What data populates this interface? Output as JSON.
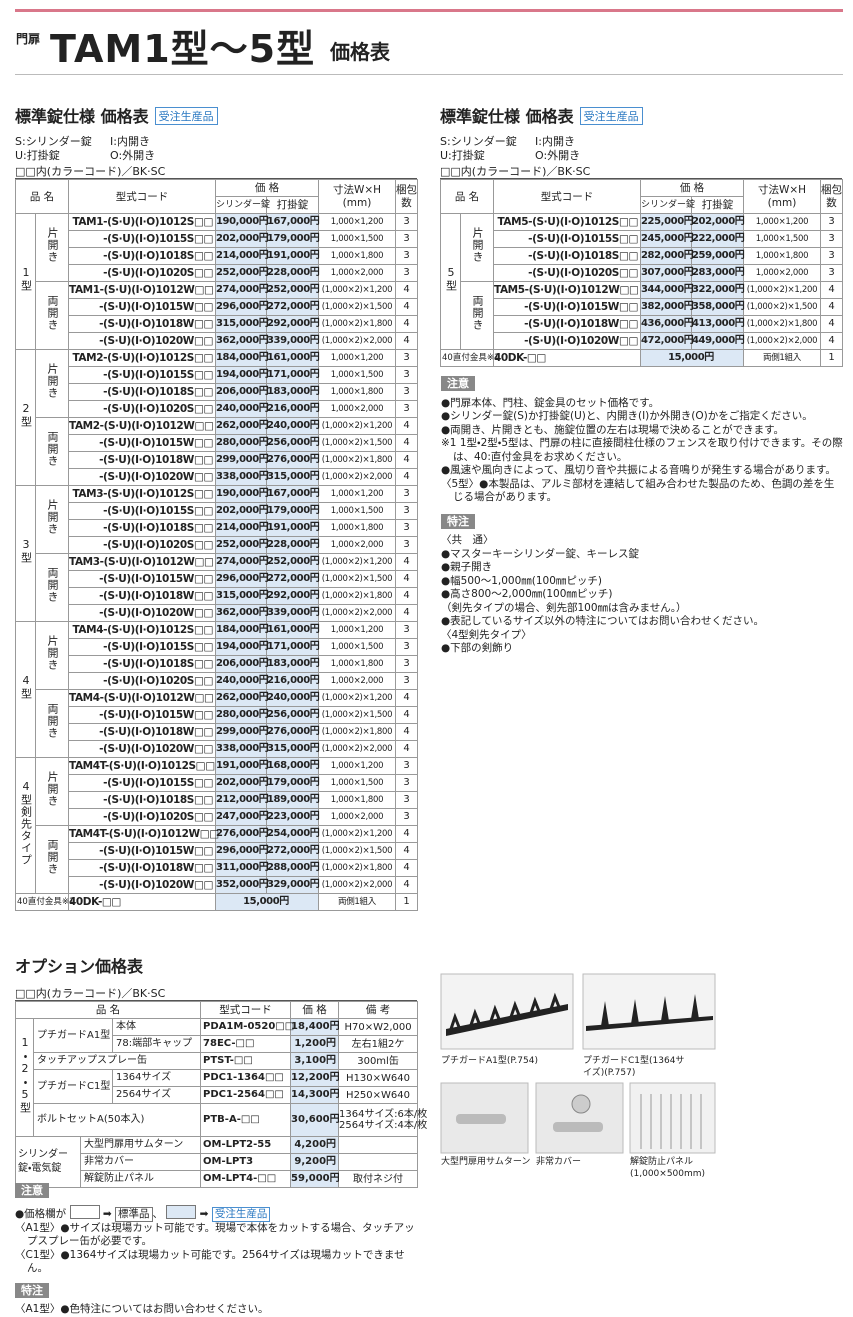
{
  "header": {
    "label": "門扉",
    "title": "TAM1型〜5型",
    "suffix": "価格表"
  },
  "left_table": {
    "title": "標準錠仕様 価格表",
    "badge": "受注生産品",
    "legend": [
      "S:シリンダー錠",
      "I:内開き",
      "U:打掛錠",
      "O:外開き"
    ],
    "color_code": "□□内(カラーコード)／BK·SC",
    "headers": [
      "品 名",
      "型式コード",
      "価 格",
      "シリンダー錠",
      "打掛錠",
      "寸法W×H",
      "(mm)",
      "梱包数"
    ],
    "groups": [
      {
        "name": "1型",
        "subgroups": [
          {
            "name": "片開き",
            "rows": [
              [
                "TAM1-(S·U)(I·O)1012S□□",
                "190,000円",
                "167,000円",
                "1,000×1,200",
                3
              ],
              [
                "-(S·U)(I·O)1015S□□",
                "202,000円",
                "179,000円",
                "1,000×1,500",
                3
              ],
              [
                "-(S·U)(I·O)1018S□□",
                "214,000円",
                "191,000円",
                "1,000×1,800",
                3
              ],
              [
                "-(S·U)(I·O)1020S□□",
                "252,000円",
                "228,000円",
                "1,000×2,000",
                3
              ]
            ]
          },
          {
            "name": "両開き",
            "rows": [
              [
                "TAM1-(S·U)(I·O)1012W□□",
                "274,000円",
                "252,000円",
                "(1,000×2)×1,200",
                4
              ],
              [
                "-(S·U)(I·O)1015W□□",
                "296,000円",
                "272,000円",
                "(1,000×2)×1,500",
                4
              ],
              [
                "-(S·U)(I·O)1018W□□",
                "315,000円",
                "292,000円",
                "(1,000×2)×1,800",
                4
              ],
              [
                "-(S·U)(I·O)1020W□□",
                "362,000円",
                "339,000円",
                "(1,000×2)×2,000",
                4
              ]
            ]
          }
        ]
      },
      {
        "name": "2型",
        "subgroups": [
          {
            "name": "片開き",
            "rows": [
              [
                "TAM2-(S·U)(I·O)1012S□□",
                "184,000円",
                "161,000円",
                "1,000×1,200",
                3
              ],
              [
                "-(S·U)(I·O)1015S□□",
                "194,000円",
                "171,000円",
                "1,000×1,500",
                3
              ],
              [
                "-(S·U)(I·O)1018S□□",
                "206,000円",
                "183,000円",
                "1,000×1,800",
                3
              ],
              [
                "-(S·U)(I·O)1020S□□",
                "240,000円",
                "216,000円",
                "1,000×2,000",
                3
              ]
            ]
          },
          {
            "name": "両開き",
            "rows": [
              [
                "TAM2-(S·U)(I·O)1012W□□",
                "262,000円",
                "240,000円",
                "(1,000×2)×1,200",
                4
              ],
              [
                "-(S·U)(I·O)1015W□□",
                "280,000円",
                "256,000円",
                "(1,000×2)×1,500",
                4
              ],
              [
                "-(S·U)(I·O)1018W□□",
                "299,000円",
                "276,000円",
                "(1,000×2)×1,800",
                4
              ],
              [
                "-(S·U)(I·O)1020W□□",
                "338,000円",
                "315,000円",
                "(1,000×2)×2,000",
                4
              ]
            ]
          }
        ]
      },
      {
        "name": "3型",
        "subgroups": [
          {
            "name": "片開き",
            "rows": [
              [
                "TAM3-(S·U)(I·O)1012S□□",
                "190,000円",
                "167,000円",
                "1,000×1,200",
                3
              ],
              [
                "-(S·U)(I·O)1015S□□",
                "202,000円",
                "179,000円",
                "1,000×1,500",
                3
              ],
              [
                "-(S·U)(I·O)1018S□□",
                "214,000円",
                "191,000円",
                "1,000×1,800",
                3
              ],
              [
                "-(S·U)(I·O)1020S□□",
                "252,000円",
                "228,000円",
                "1,000×2,000",
                3
              ]
            ]
          },
          {
            "name": "両開き",
            "rows": [
              [
                "TAM3-(S·U)(I·O)1012W□□",
                "274,000円",
                "252,000円",
                "(1,000×2)×1,200",
                4
              ],
              [
                "-(S·U)(I·O)1015W□□",
                "296,000円",
                "272,000円",
                "(1,000×2)×1,500",
                4
              ],
              [
                "-(S·U)(I·O)1018W□□",
                "315,000円",
                "292,000円",
                "(1,000×2)×1,800",
                4
              ],
              [
                "-(S·U)(I·O)1020W□□",
                "362,000円",
                "339,000円",
                "(1,000×2)×2,000",
                4
              ]
            ]
          }
        ]
      },
      {
        "name": "4型",
        "subgroups": [
          {
            "name": "片開き",
            "rows": [
              [
                "TAM4-(S·U)(I·O)1012S□□",
                "184,000円",
                "161,000円",
                "1,000×1,200",
                3
              ],
              [
                "-(S·U)(I·O)1015S□□",
                "194,000円",
                "171,000円",
                "1,000×1,500",
                3
              ],
              [
                "-(S·U)(I·O)1018S□□",
                "206,000円",
                "183,000円",
                "1,000×1,800",
                3
              ],
              [
                "-(S·U)(I·O)1020S□□",
                "240,000円",
                "216,000円",
                "1,000×2,000",
                3
              ]
            ]
          },
          {
            "name": "両開き",
            "rows": [
              [
                "TAM4-(S·U)(I·O)1012W□□",
                "262,000円",
                "240,000円",
                "(1,000×2)×1,200",
                4
              ],
              [
                "-(S·U)(I·O)1015W□□",
                "280,000円",
                "256,000円",
                "(1,000×2)×1,500",
                4
              ],
              [
                "-(S·U)(I·O)1018W□□",
                "299,000円",
                "276,000円",
                "(1,000×2)×1,800",
                4
              ],
              [
                "-(S·U)(I·O)1020W□□",
                "338,000円",
                "315,000円",
                "(1,000×2)×2,000",
                4
              ]
            ]
          }
        ]
      },
      {
        "name": "4型剣先タイプ",
        "subgroups": [
          {
            "name": "片開き",
            "rows": [
              [
                "TAM4T-(S·U)(I·O)1012S□□",
                "191,000円",
                "168,000円",
                "1,000×1,200",
                3
              ],
              [
                "-(S·U)(I·O)1015S□□",
                "202,000円",
                "179,000円",
                "1,000×1,500",
                3
              ],
              [
                "-(S·U)(I·O)1018S□□",
                "212,000円",
                "189,000円",
                "1,000×1,800",
                3
              ],
              [
                "-(S·U)(I·O)1020S□□",
                "247,000円",
                "223,000円",
                "1,000×2,000",
                3
              ]
            ]
          },
          {
            "name": "両開き",
            "rows": [
              [
                "TAM4T-(S·U)(I·O)1012W□□",
                "276,000円",
                "254,000円",
                "(1,000×2)×1,200",
                4
              ],
              [
                "-(S·U)(I·O)1015W□□",
                "296,000円",
                "272,000円",
                "(1,000×2)×1,500",
                4
              ],
              [
                "-(S·U)(I·O)1018W□□",
                "311,000円",
                "288,000円",
                "(1,000×2)×1,800",
                4
              ],
              [
                "-(S·U)(I·O)1020W□□",
                "352,000円",
                "329,000円",
                "(1,000×2)×2,000",
                4
              ]
            ]
          }
        ]
      }
    ],
    "footer": [
      "40直付金具※1",
      "40DK-□□",
      "15,000円",
      "両側1組入",
      1
    ]
  },
  "right_table": {
    "title": "標準錠仕様 価格表",
    "badge": "受注生産品",
    "legend": [
      "S:シリンダー錠",
      "I:内開き",
      "U:打掛錠",
      "O:外開き"
    ],
    "color_code": "□□内(カラーコード)／BK·SC",
    "headers": [
      "品 名",
      "型式コード",
      "価 格",
      "シリンダー錠",
      "打掛錠",
      "寸法W×H",
      "(mm)",
      "梱包数"
    ],
    "groups": [
      {
        "name": "5型",
        "subgroups": [
          {
            "name": "片開き",
            "rows": [
              [
                "TAM5-(S·U)(I·O)1012S□□",
                "225,000円",
                "202,000円",
                "1,000×1,200",
                3
              ],
              [
                "-(S·U)(I·O)1015S□□",
                "245,000円",
                "222,000円",
                "1,000×1,500",
                3
              ],
              [
                "-(S·U)(I·O)1018S□□",
                "282,000円",
                "259,000円",
                "1,000×1,800",
                3
              ],
              [
                "-(S·U)(I·O)1020S□□",
                "307,000円",
                "283,000円",
                "1,000×2,000",
                3
              ]
            ]
          },
          {
            "name": "両開き",
            "rows": [
              [
                "TAM5-(S·U)(I·O)1012W□□",
                "344,000円",
                "322,000円",
                "(1,000×2)×1,200",
                4
              ],
              [
                "-(S·U)(I·O)1015W□□",
                "382,000円",
                "358,000円",
                "(1,000×2)×1,500",
                4
              ],
              [
                "-(S·U)(I·O)1018W□□",
                "436,000円",
                "413,000円",
                "(1,000×2)×1,800",
                4
              ],
              [
                "-(S·U)(I·O)1020W□□",
                "472,000円",
                "449,000円",
                "(1,000×2)×2,000",
                4
              ]
            ]
          }
        ]
      }
    ],
    "footer": [
      "40直付金具※1",
      "40DK-□□",
      "15,000円",
      "両側1組入",
      1
    ]
  },
  "notes": {
    "label": "注意",
    "items": [
      "●門扉本体、門柱、錠金具のセット価格です。",
      "●シリンダー錠(S)か打掛錠(U)と、内開き(I)か外開き(O)かをご指定ください。",
      "●両開き、片開きとも、施錠位置の左右は現場で決めることができます。",
      "※1 1型・2型・5型は、門扉の柱に直接間柱仕様のフェンスを取り付けできます。その際は、40:直付金具をお求めください。",
      "●風速や風向きによって、風切り音や共振による音鳴りが発生する場合があります。",
      "〈5型〉●本製品は、アルミ部材を連結して組み合わせた製品のため、色調の差を生じる場合があります。"
    ]
  },
  "special": {
    "label": "特注",
    "items": [
      "〈共　通〉",
      "●マスターキーシリンダー錠、キーレス錠",
      "●親子開き",
      "●幅500〜1,000㎜(100㎜ピッチ)",
      "●高さ800〜2,000㎜(100㎜ピッチ)",
      "（剣先タイプの場合、剣先部100㎜は含みません。）",
      "●表記しているサイズ以外の特注についてはお問い合わせください。",
      "〈4型剣先タイプ〉",
      "●下部の剣飾り"
    ]
  },
  "options": {
    "title": "オプション価格表",
    "color_code": "□□内(カラーコード)／BK·SC",
    "headers": [
      "品 名",
      "型式コード",
      "価 格",
      "備 考"
    ],
    "groups": [
      {
        "name": "1・2・5型",
        "rows": [
          {
            "name": "プチガードA1型",
            "sub": "本体",
            "code": "PDA1M-0520□□",
            "price": "18,400円",
            "note": "H70×W2,000"
          },
          {
            "sub": "78:端部キャップ",
            "code": "78EC-□□",
            "price": "1,200円",
            "note": "左右1組2ケ"
          },
          {
            "name": "タッチアップスプレー缶",
            "code": "PTST-□□",
            "price": "3,100円",
            "note": "300ml缶"
          },
          {
            "name": "プチガードC1型",
            "sub": "1364サイズ",
            "code": "PDC1-1364□□",
            "price": "12,200円",
            "note": "H130×W640"
          },
          {
            "sub": "2564サイズ",
            "code": "PDC1-2564□□",
            "price": "14,300円",
            "note": "H250×W640"
          },
          {
            "name": "ボルトセットA(50本入)",
            "code": "PTB-A-□□",
            "price": "30,600円",
            "note": [
              "1364サイズ:6本/枚",
              "2564サイズ:4本/枚"
            ]
          }
        ]
      },
      {
        "name": "シリンダー錠・電気錠",
        "rows": [
          {
            "name": "大型門扉用サムターン",
            "code": "OM-LPT2-55",
            "price": "4,200円"
          },
          {
            "name": "非常カバー",
            "code": "OM-LPT3",
            "price": "9,200円"
          },
          {
            "name": "解錠防止パネル",
            "code": "OM-LPT4-□□",
            "price": "59,000円",
            "note": "取付ネジ付"
          }
        ]
      }
    ],
    "images": [
      "プチガードA1型(P.754)",
      "プチガードC1型(1364サイズ)(P.757)",
      "大型門扉用サムターン",
      "非常カバー",
      "解錠防止パネル(1,000×500mm)"
    ],
    "notes": {
      "label": "注意",
      "prefix": "●価格欄が",
      "standard": "標準品",
      "sep": "、",
      "order": "受注生産品",
      "items": [
        "〈A1型〉●サイズは現場カット可能です。現場で本体をカットする場合、タッチアップスプレー缶が必要です。",
        "〈C1型〉●1364サイズは現場カット可能です。2564サイズは現場カットできません。"
      ]
    },
    "special": {
      "label": "特注",
      "items": [
        "〈A1型〉●色特注についてはお問い合わせください。"
      ]
    }
  }
}
